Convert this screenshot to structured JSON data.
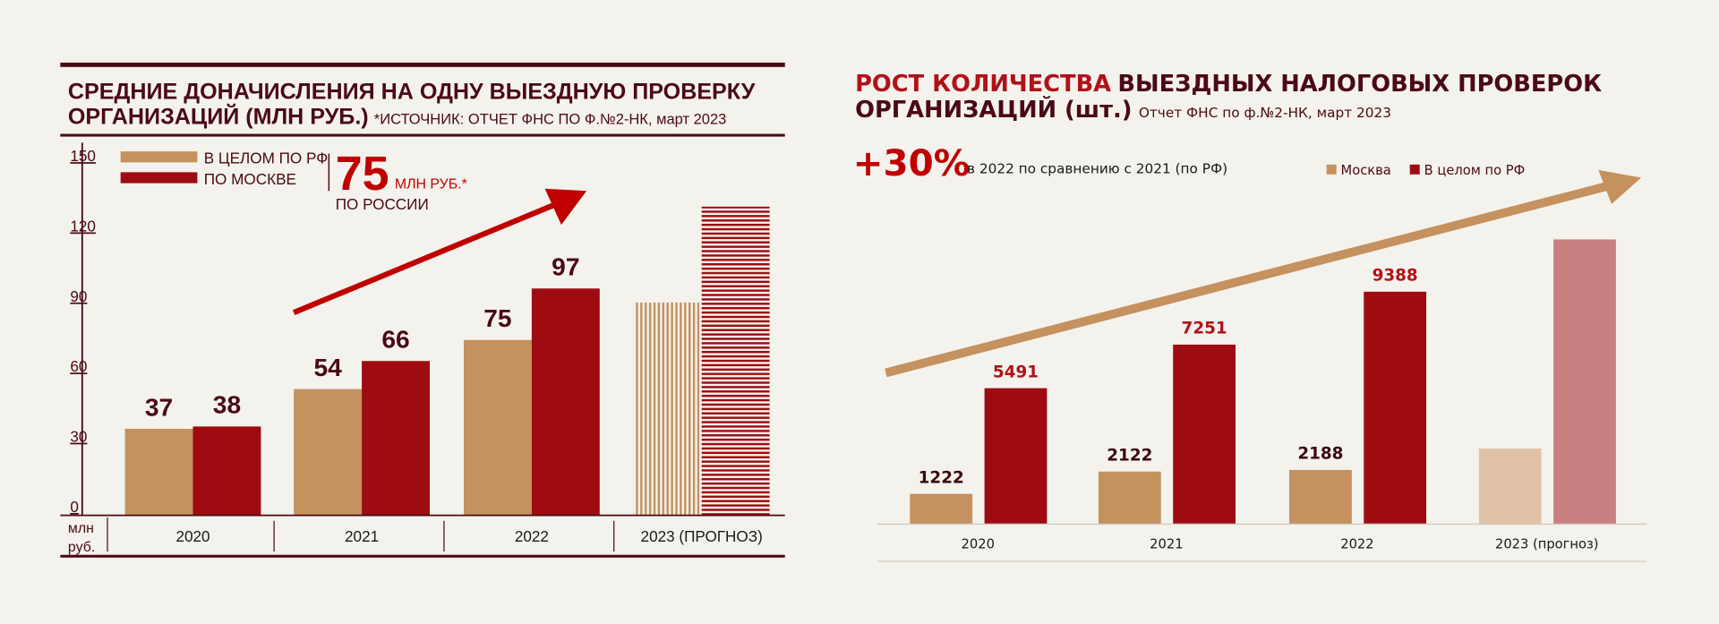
{
  "colors": {
    "background": "#f4f2ec",
    "tan": "#c4915f",
    "red": "#9e0c12",
    "dark": "#4a0a14",
    "accent": "#c00000",
    "tan_light": "#e0c3a6",
    "pink": "#c98080"
  },
  "left": {
    "title_line1": "СРЕДНИЕ ДОНАЧИСЛЕНИЯ НА ОДНУ ВЫЕЗДНУЮ ПРОВЕРКУ",
    "title_line2": "ОРГАНИЗАЦИЙ (МЛН РУБ.)",
    "source": "*ИСТОЧНИК: ОТЧЕТ ФНС ПО Ф.№2-НК, март 2023",
    "highlight_value": "75",
    "highlight_unit": "МЛН РУБ.*",
    "highlight_caption": "ПО РОССИИ",
    "unit_line1": "млн",
    "unit_line2": "руб."
  },
  "right": {
    "title_accent": "РОСТ КОЛИЧЕСТВА",
    "title_rest": "ВЫЕЗДНЫХ НАЛОГОВЫХ ПРОВЕРОК",
    "title_line2": "ОРГАНИЗАЦИЙ (шт.)",
    "source": "Отчет ФНС по ф.№2-НК, март 2023",
    "growth_value": "+30%",
    "growth_caption": "в 2022 по сравнению с 2021 (по РФ)"
  },
  "chart_data": [
    {
      "type": "bar",
      "title": "СРЕДНИЕ ДОНАЧИСЛЕНИЯ НА ОДНУ ВЫЕЗДНУЮ ПРОВЕРКУ ОРГАНИЗАЦИЙ (МЛН РУБ.)",
      "ylabel": "млн руб.",
      "ylim": [
        0,
        150
      ],
      "yticks": [
        0,
        30,
        60,
        90,
        120,
        150
      ],
      "categories": [
        "2020",
        "2021",
        "2022",
        "2023 (ПРОГНОЗ)"
      ],
      "series": [
        {
          "name": "В ЦЕЛОМ ПО РФ",
          "values": [
            37,
            54,
            75,
            91
          ],
          "labels": [
            "37",
            "54",
            "75",
            ""
          ]
        },
        {
          "name": "ПО МОСКВЕ",
          "values": [
            38,
            66,
            97,
            132
          ],
          "labels": [
            "38",
            "66",
            "97",
            ""
          ]
        }
      ],
      "forecast_category": "2023 (ПРОГНОЗ)",
      "legend": "top-left",
      "grid": false
    },
    {
      "type": "bar",
      "title": "РОСТ КОЛИЧЕСТВА ВЫЕЗДНЫХ НАЛОГОВЫХ ПРОВЕРОК ОРГАНИЗАЦИЙ (шт.)",
      "categories": [
        "2020",
        "2021",
        "2022",
        "2023 (прогноз)"
      ],
      "series": [
        {
          "name": "Москва",
          "values": [
            1222,
            2122,
            2188,
            3050
          ],
          "labels": [
            "1222",
            "2122",
            "2188",
            ""
          ]
        },
        {
          "name": "В целом по РФ",
          "values": [
            5491,
            7251,
            9388,
            11500
          ],
          "labels": [
            "5491",
            "7251",
            "9388",
            ""
          ]
        }
      ],
      "forecast_category": "2023 (прогноз)",
      "legend": "top-right",
      "grid": false
    }
  ]
}
